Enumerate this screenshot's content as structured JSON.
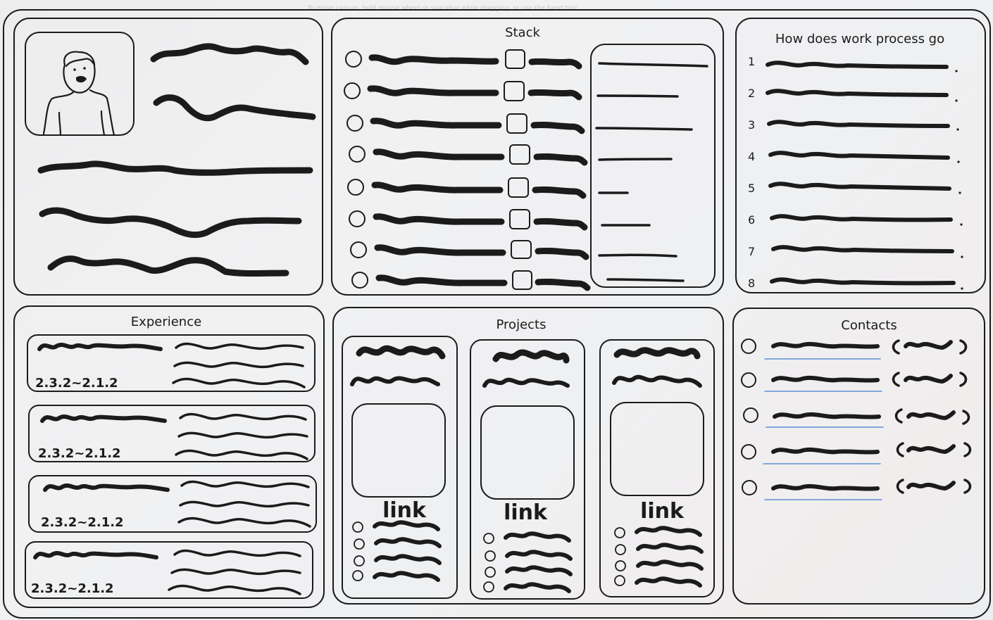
{
  "hint": "To move canvas, hold mouse wheel or spacebar while dragging, or use the hand tool",
  "stack": {
    "title": "Stack",
    "rows": 8
  },
  "process": {
    "title": "How does work process go",
    "steps": [
      "1",
      "2",
      "3",
      "4",
      "5",
      "6",
      "7",
      "8"
    ]
  },
  "experience": {
    "title": "Experience",
    "dates": [
      "2.3.2~2.1.2",
      "2.3.2~2.1.2",
      "2.3.2~2.1.2",
      "2.3.2~2.1.2"
    ]
  },
  "projects": {
    "title": "Projects",
    "link_label": "link",
    "cards": 3
  },
  "contacts": {
    "title": "Contacts",
    "rows": 5
  },
  "colors": {
    "ink": "#1b1b1b",
    "link_underline": "#5b8fd6"
  }
}
